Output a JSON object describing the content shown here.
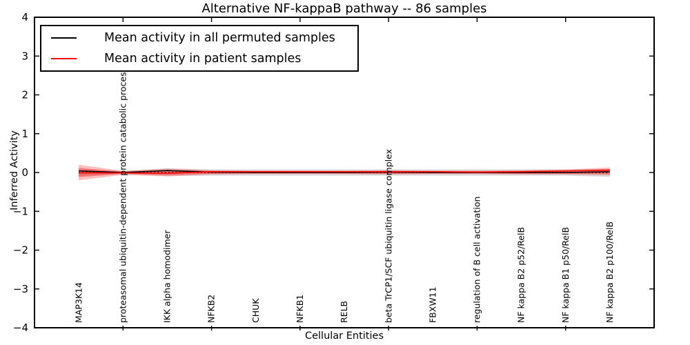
{
  "title": "Alternative NF-kappaB pathway -- 86 samples",
  "axes": {
    "x_label": "Cellular Entities",
    "y_label": "Inferred Activity"
  },
  "legend": {
    "position": "upper left",
    "items": [
      {
        "label": "Mean activity in all permuted samples",
        "color": "#000000"
      },
      {
        "label": "Mean activity in patient samples",
        "color": "#ff0000"
      }
    ]
  },
  "chart_data": {
    "type": "line",
    "title": "Alternative NF-kappaB pathway -- 86 samples",
    "xlabel": "Cellular Entities",
    "ylabel": "Inferred Activity",
    "grid": false,
    "legend_position": "upper left",
    "layout": {
      "xlim": [
        -1,
        13
      ],
      "ylim": [
        -4,
        4
      ],
      "yticks": [
        4,
        3,
        2,
        1,
        0,
        -1,
        -2,
        -3,
        -4
      ],
      "ytick_labels": [
        "4",
        "3",
        "2",
        "1",
        "0",
        "−1",
        "−2",
        "−3",
        "−4"
      ],
      "xtick_positions": [
        1,
        3,
        5,
        7,
        9,
        11
      ]
    },
    "categories": [
      "MAP3K14",
      "proteasomal ubiquitin-dependent protein catabolic process",
      "IKK alpha homodimer",
      "NFKB2",
      "CHUK",
      "NFKB1",
      "RELB",
      "beta TrCP1/SCF ubiquitin ligase complex",
      "FBXW11",
      "regulation of B cell activation",
      "NF kappa B2 p52/RelB",
      "NF kappa B1 p50/RelB",
      "NF kappa B2 p100/RelB"
    ],
    "zero_line": {
      "y": 0,
      "style": "dotted",
      "color": "#000000"
    },
    "series": [
      {
        "name": "Mean activity in all permuted samples",
        "kind": "line",
        "color": "#000000",
        "values": [
          0.04,
          0.0,
          0.05,
          0.01,
          0.0,
          0.0,
          0.0,
          0.01,
          0.0,
          0.0,
          0.0,
          0.0,
          0.02
        ]
      },
      {
        "name": "Mean activity in patient samples",
        "kind": "line",
        "color": "#ff0000",
        "values": [
          -0.01,
          -0.01,
          -0.02,
          0.02,
          0.02,
          0.02,
          0.02,
          0.02,
          0.02,
          0.01,
          0.02,
          0.04,
          0.06
        ]
      },
      {
        "name": "Std of activity in all permuted samples",
        "kind": "band",
        "color": "rgba(80,80,80,0.22)",
        "upper": [
          0.09,
          0.04,
          0.11,
          0.08,
          0.08,
          0.08,
          0.08,
          0.08,
          0.08,
          0.08,
          0.08,
          0.08,
          0.09
        ],
        "lower": [
          -0.09,
          -0.04,
          -0.09,
          -0.08,
          -0.08,
          -0.08,
          -0.08,
          -0.08,
          -0.08,
          -0.08,
          -0.08,
          -0.08,
          -0.11
        ]
      },
      {
        "name": "Std of activity in patient samples (outer)",
        "kind": "band",
        "color": "rgba(255,40,40,0.30)",
        "upper": [
          0.2,
          0.04,
          0.1,
          0.06,
          0.05,
          0.05,
          0.05,
          0.06,
          0.05,
          0.05,
          0.06,
          0.08,
          0.13
        ],
        "lower": [
          -0.2,
          -0.06,
          -0.1,
          -0.05,
          -0.04,
          -0.04,
          -0.04,
          -0.05,
          -0.04,
          -0.04,
          -0.05,
          -0.05,
          -0.07
        ]
      },
      {
        "name": "Std of activity in patient samples (inner)",
        "kind": "band",
        "color": "rgba(255,20,20,0.38)",
        "upper": [
          0.12,
          0.02,
          0.06,
          0.04,
          0.03,
          0.03,
          0.03,
          0.04,
          0.03,
          0.03,
          0.04,
          0.05,
          0.09
        ],
        "lower": [
          -0.12,
          -0.03,
          -0.06,
          -0.03,
          -0.02,
          -0.02,
          -0.02,
          -0.03,
          -0.02,
          -0.02,
          -0.03,
          -0.03,
          -0.04
        ]
      }
    ]
  }
}
